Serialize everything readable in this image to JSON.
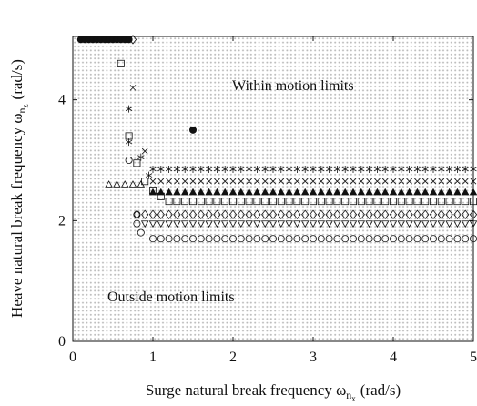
{
  "chart_data": {
    "type": "scatter",
    "xlabel": {
      "text": "Surge natural break frequency ω",
      "sub": "n",
      "subsub": "x",
      "unit": "(rad/s)"
    },
    "ylabel": {
      "text": "Heave natural break frequency ω",
      "sub": "n",
      "subsub": "z",
      "unit": "(rad/s)"
    },
    "annotations": [
      "Within motion limits",
      "Outside motion limits"
    ],
    "xlim": [
      0,
      5
    ],
    "ylim": [
      0,
      5.05
    ],
    "xticks": [
      0,
      1,
      2,
      3,
      4,
      5
    ],
    "yticks": [
      0,
      2,
      4
    ],
    "series": [
      {
        "marker": "filled-circle",
        "color": "#111",
        "x": [
          0.1,
          0.15,
          0.2,
          0.25,
          0.3,
          0.35,
          0.4,
          0.45,
          0.5,
          0.55,
          0.6,
          0.65,
          0.7,
          1.5
        ],
        "values": [
          5,
          5,
          5,
          5,
          5,
          5,
          5,
          5,
          5,
          5,
          5,
          5,
          5,
          3.5
        ]
      },
      {
        "marker": "asterisk",
        "color": "#111",
        "x": [
          0.7,
          0.7,
          0.85,
          0.95,
          1,
          1.1,
          1.2,
          1.3,
          1.4,
          1.5,
          1.6,
          1.7,
          1.8,
          1.9,
          2,
          2.1,
          2.2,
          2.3,
          2.4,
          2.5,
          2.6,
          2.7,
          2.8,
          2.9,
          3,
          3.1,
          3.2,
          3.3,
          3.4,
          3.5,
          3.6,
          3.7,
          3.8,
          3.9,
          4,
          4.1,
          4.2,
          4.3,
          4.4,
          4.5,
          4.6,
          4.7,
          4.8,
          4.9,
          5
        ],
        "values": [
          3.85,
          3.3,
          3.05,
          2.75,
          2.85,
          2.85,
          2.85,
          2.85,
          2.85,
          2.85,
          2.85,
          2.85,
          2.85,
          2.85,
          2.85,
          2.85,
          2.85,
          2.85,
          2.85,
          2.85,
          2.85,
          2.85,
          2.85,
          2.85,
          2.85,
          2.85,
          2.85,
          2.85,
          2.85,
          2.85,
          2.85,
          2.85,
          2.85,
          2.85,
          2.85,
          2.85,
          2.85,
          2.85,
          2.85,
          2.85,
          2.85,
          2.85,
          2.85,
          2.85,
          2.85
        ]
      },
      {
        "marker": "cross",
        "color": "#111",
        "x": [
          0.75,
          0.9,
          1,
          1.1,
          1.2,
          1.3,
          1.4,
          1.5,
          1.6,
          1.7,
          1.8,
          1.9,
          2,
          2.1,
          2.2,
          2.3,
          2.4,
          2.5,
          2.6,
          2.7,
          2.8,
          2.9,
          3,
          3.1,
          3.2,
          3.3,
          3.4,
          3.5,
          3.6,
          3.7,
          3.8,
          3.9,
          4,
          4.1,
          4.2,
          4.3,
          4.4,
          4.5,
          4.6,
          4.7,
          4.8,
          4.9,
          5
        ],
        "values": [
          4.2,
          3.15,
          2.65,
          2.65,
          2.65,
          2.65,
          2.65,
          2.65,
          2.65,
          2.65,
          2.65,
          2.65,
          2.65,
          2.65,
          2.65,
          2.65,
          2.65,
          2.65,
          2.65,
          2.65,
          2.65,
          2.65,
          2.65,
          2.65,
          2.65,
          2.65,
          2.65,
          2.65,
          2.65,
          2.65,
          2.65,
          2.65,
          2.65,
          2.65,
          2.65,
          2.65,
          2.65,
          2.65,
          2.65,
          2.65,
          2.65,
          2.65,
          2.65
        ]
      },
      {
        "marker": "filled-triangle",
        "color": "#111",
        "x": [
          1,
          1.1,
          1.2,
          1.3,
          1.4,
          1.5,
          1.6,
          1.7,
          1.8,
          1.9,
          2,
          2.1,
          2.2,
          2.3,
          2.4,
          2.5,
          2.6,
          2.7,
          2.8,
          2.9,
          3,
          3.1,
          3.2,
          3.3,
          3.4,
          3.5,
          3.6,
          3.7,
          3.8,
          3.9,
          4,
          4.1,
          4.2,
          4.3,
          4.4,
          4.5,
          4.6,
          4.7,
          4.8,
          4.9,
          5
        ],
        "values": [
          2.47,
          2.47,
          2.47,
          2.47,
          2.47,
          2.47,
          2.47,
          2.47,
          2.47,
          2.47,
          2.47,
          2.47,
          2.47,
          2.47,
          2.47,
          2.47,
          2.47,
          2.47,
          2.47,
          2.47,
          2.47,
          2.47,
          2.47,
          2.47,
          2.47,
          2.47,
          2.47,
          2.47,
          2.47,
          2.47,
          2.47,
          2.47,
          2.47,
          2.47,
          2.47,
          2.47,
          2.47,
          2.47,
          2.47,
          2.47,
          2.47
        ]
      },
      {
        "marker": "triangle",
        "color": "#111",
        "x": [
          0.45,
          0.55,
          0.65,
          0.75,
          0.85
        ],
        "values": [
          2.6,
          2.6,
          2.6,
          2.6,
          2.6
        ]
      },
      {
        "marker": "square",
        "color": "#111",
        "x": [
          0.6,
          0.7,
          0.8,
          0.9,
          1,
          1.1,
          1.2,
          1.3,
          1.4,
          1.5,
          1.6,
          1.7,
          1.8,
          1.9,
          2,
          2.1,
          2.2,
          2.3,
          2.4,
          2.5,
          2.6,
          2.7,
          2.8,
          2.9,
          3,
          3.1,
          3.2,
          3.3,
          3.4,
          3.5,
          3.6,
          3.7,
          3.8,
          3.9,
          4,
          4.1,
          4.2,
          4.3,
          4.4,
          4.5,
          4.6,
          4.7,
          4.8,
          4.9,
          5
        ],
        "values": [
          4.6,
          3.4,
          2.95,
          2.65,
          2.5,
          2.4,
          2.32,
          2.32,
          2.32,
          2.32,
          2.32,
          2.32,
          2.32,
          2.32,
          2.32,
          2.32,
          2.32,
          2.32,
          2.32,
          2.32,
          2.32,
          2.32,
          2.32,
          2.32,
          2.32,
          2.32,
          2.32,
          2.32,
          2.32,
          2.32,
          2.32,
          2.32,
          2.32,
          2.32,
          2.32,
          2.32,
          2.32,
          2.32,
          2.32,
          2.32,
          2.32,
          2.32,
          2.32,
          2.32,
          2.32
        ]
      },
      {
        "marker": "diamond",
        "color": "#111",
        "x": [
          0.75,
          0.8,
          0.9,
          1,
          1.1,
          1.2,
          1.3,
          1.4,
          1.5,
          1.6,
          1.7,
          1.8,
          1.9,
          2,
          2.1,
          2.2,
          2.3,
          2.4,
          2.5,
          2.6,
          2.7,
          2.8,
          2.9,
          3,
          3.1,
          3.2,
          3.3,
          3.4,
          3.5,
          3.6,
          3.7,
          3.8,
          3.9,
          4,
          4.1,
          4.2,
          4.3,
          4.4,
          4.5,
          4.6,
          4.7,
          4.8,
          4.9,
          5
        ],
        "values": [
          5,
          2.1,
          2.1,
          2.1,
          2.1,
          2.1,
          2.1,
          2.1,
          2.1,
          2.1,
          2.1,
          2.1,
          2.1,
          2.1,
          2.1,
          2.1,
          2.1,
          2.1,
          2.1,
          2.1,
          2.1,
          2.1,
          2.1,
          2.1,
          2.1,
          2.1,
          2.1,
          2.1,
          2.1,
          2.1,
          2.1,
          2.1,
          2.1,
          2.1,
          2.1,
          2.1,
          2.1,
          2.1,
          2.1,
          2.1,
          2.1,
          2.1,
          2.1,
          2.1
        ]
      },
      {
        "marker": "triangle-down",
        "color": "#111",
        "x": [
          0.9,
          1,
          1.1,
          1.2,
          1.3,
          1.4,
          1.5,
          1.6,
          1.7,
          1.8,
          1.9,
          2,
          2.1,
          2.2,
          2.3,
          2.4,
          2.5,
          2.6,
          2.7,
          2.8,
          2.9,
          3,
          3.1,
          3.2,
          3.3,
          3.4,
          3.5,
          3.6,
          3.7,
          3.8,
          3.9,
          4,
          4.1,
          4.2,
          4.3,
          4.4,
          4.5,
          4.6,
          4.7,
          4.8,
          4.9,
          5
        ],
        "values": [
          1.95,
          1.95,
          1.95,
          1.95,
          1.95,
          1.95,
          1.95,
          1.95,
          1.95,
          1.95,
          1.95,
          1.95,
          1.95,
          1.95,
          1.95,
          1.95,
          1.95,
          1.95,
          1.95,
          1.95,
          1.95,
          1.95,
          1.95,
          1.95,
          1.95,
          1.95,
          1.95,
          1.95,
          1.95,
          1.95,
          1.95,
          1.95,
          1.95,
          1.95,
          1.95,
          1.95,
          1.95,
          1.95,
          1.95,
          1.95,
          1.95,
          1.95
        ]
      },
      {
        "marker": "circle",
        "color": "#111",
        "x": [
          0.7,
          0.8,
          0.8,
          0.85,
          1,
          1.1,
          1.2,
          1.3,
          1.4,
          1.5,
          1.6,
          1.7,
          1.8,
          1.9,
          2,
          2.1,
          2.2,
          2.3,
          2.4,
          2.5,
          2.6,
          2.7,
          2.8,
          2.9,
          3,
          3.1,
          3.2,
          3.3,
          3.4,
          3.5,
          3.6,
          3.7,
          3.8,
          3.9,
          4,
          4.1,
          4.2,
          4.3,
          4.4,
          4.5,
          4.6,
          4.7,
          4.8,
          4.9,
          5
        ],
        "values": [
          3,
          2.1,
          1.95,
          1.8,
          1.7,
          1.7,
          1.7,
          1.7,
          1.7,
          1.7,
          1.7,
          1.7,
          1.7,
          1.7,
          1.7,
          1.7,
          1.7,
          1.7,
          1.7,
          1.7,
          1.7,
          1.7,
          1.7,
          1.7,
          1.7,
          1.7,
          1.7,
          1.7,
          1.7,
          1.7,
          1.7,
          1.7,
          1.7,
          1.7,
          1.7,
          1.7,
          1.7,
          1.7,
          1.7,
          1.7,
          1.7,
          1.7,
          1.7,
          1.7,
          1.7
        ]
      }
    ]
  }
}
